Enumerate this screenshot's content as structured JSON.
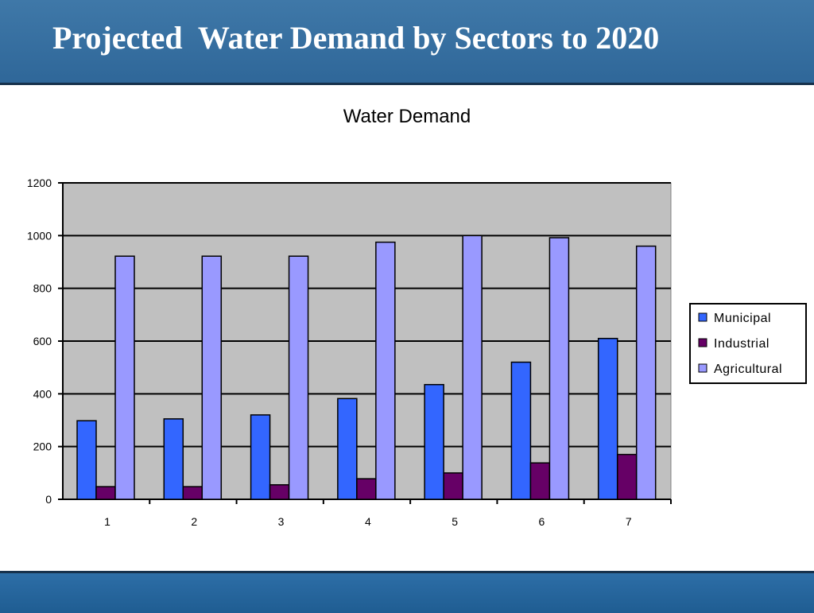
{
  "slide": {
    "title": "Projected  Water Demand by Sectors to 2020"
  },
  "colors": {
    "header": "#3270a2",
    "footer": "#2566a0",
    "plot_bg": "#c0c0c0"
  },
  "chart_data": {
    "type": "bar",
    "title": "Water Demand",
    "xlabel": "",
    "ylabel": "",
    "categories": [
      "1",
      "2",
      "3",
      "4",
      "5",
      "6",
      "7"
    ],
    "series": [
      {
        "name": "Municipal",
        "color": "#3366ff",
        "values": [
          298,
          305,
          320,
          382,
          435,
          520,
          610
        ]
      },
      {
        "name": "Industrial",
        "color": "#660066",
        "values": [
          48,
          48,
          55,
          78,
          100,
          138,
          170
        ]
      },
      {
        "name": "Agricultural",
        "color": "#9999ff",
        "values": [
          922,
          922,
          922,
          975,
          1000,
          992,
          960
        ]
      }
    ],
    "ylim": [
      0,
      1200
    ],
    "yticks": [
      0,
      200,
      400,
      600,
      800,
      1000,
      1200
    ],
    "grid": true,
    "legend": "right"
  }
}
